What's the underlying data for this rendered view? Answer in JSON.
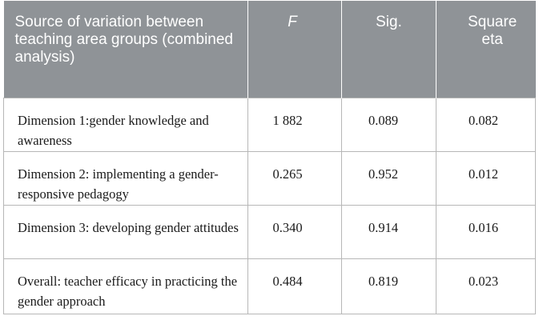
{
  "table": {
    "headers": {
      "source": "Source of variation between teaching area groups (combined analysis)",
      "f": "F",
      "sig": "Sig.",
      "eta": "Square eta"
    },
    "rows": [
      {
        "label": "Dimension 1:gender knowledge and awareness",
        "f": "1 882",
        "sig": "0.089",
        "eta": "0.082"
      },
      {
        "label": "Dimension 2: implementing a gender-responsive pedagogy",
        "f": "0.265",
        "sig": "0.952",
        "eta": "0.012"
      },
      {
        "label": "Dimension 3: developing gender attitudes",
        "f": "0.340",
        "sig": "0.914",
        "eta": "0.016"
      },
      {
        "label": "Overall: teacher efficacy in practicing the gender approach",
        "f": "0.484",
        "sig": "0.819",
        "eta": "0.023"
      }
    ]
  },
  "colors": {
    "header_bg": "#8f9397",
    "header_text": "#ffffff",
    "border": "#b7b7b7"
  }
}
